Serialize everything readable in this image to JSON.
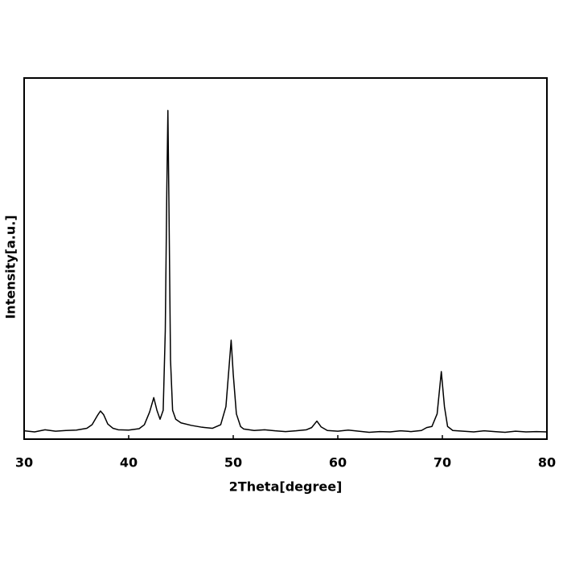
{
  "chart_data": {
    "type": "line",
    "x_label": "2Theta[degree]",
    "y_label": "Intensity[a.u.]",
    "xlim": [
      30,
      80
    ],
    "xticks": [
      30,
      40,
      50,
      60,
      70,
      80
    ],
    "ylim": [
      0,
      100
    ],
    "series": [
      {
        "color": "#000000",
        "x": [
          30,
          31,
          32,
          33,
          34,
          35,
          36,
          36.5,
          37,
          37.3,
          37.6,
          38,
          38.5,
          39,
          40,
          41,
          41.5,
          42,
          42.4,
          42.7,
          43,
          43.3,
          43.5,
          43.65,
          43.75,
          43.85,
          44,
          44.2,
          44.5,
          45,
          46,
          47,
          48,
          48.8,
          49.3,
          49.6,
          49.8,
          50,
          50.3,
          50.7,
          51,
          52,
          53,
          54,
          55,
          56,
          57,
          57.5,
          58,
          58.4,
          59,
          60,
          61,
          62,
          63,
          64,
          65,
          66,
          67,
          68,
          68.5,
          69,
          69.5,
          69.9,
          70.2,
          70.5,
          71,
          72,
          73,
          74,
          75,
          76,
          77,
          78,
          79,
          80
        ],
        "values": [
          2.3,
          2.0,
          2.6,
          2.2,
          2.4,
          2.5,
          3.0,
          4.0,
          6.5,
          7.8,
          6.8,
          4.2,
          3.0,
          2.6,
          2.5,
          2.9,
          4.0,
          7.5,
          11.5,
          8.0,
          5.5,
          8,
          30,
          70,
          91,
          65,
          22,
          8,
          5.5,
          4.5,
          3.8,
          3.3,
          3.0,
          4.0,
          9,
          20,
          27.4,
          18,
          7,
          3.5,
          2.8,
          2.4,
          2.6,
          2.3,
          2.1,
          2.3,
          2.6,
          3.2,
          5.0,
          3.4,
          2.4,
          2.2,
          2.5,
          2.2,
          1.9,
          2.1,
          2.0,
          2.3,
          2.1,
          2.4,
          3.2,
          3.5,
          7,
          18.7,
          9,
          3.5,
          2.4,
          2.2,
          2.0,
          2.3,
          2.1,
          1.9,
          2.2,
          2.0,
          2.1,
          2.0
        ]
      }
    ]
  }
}
